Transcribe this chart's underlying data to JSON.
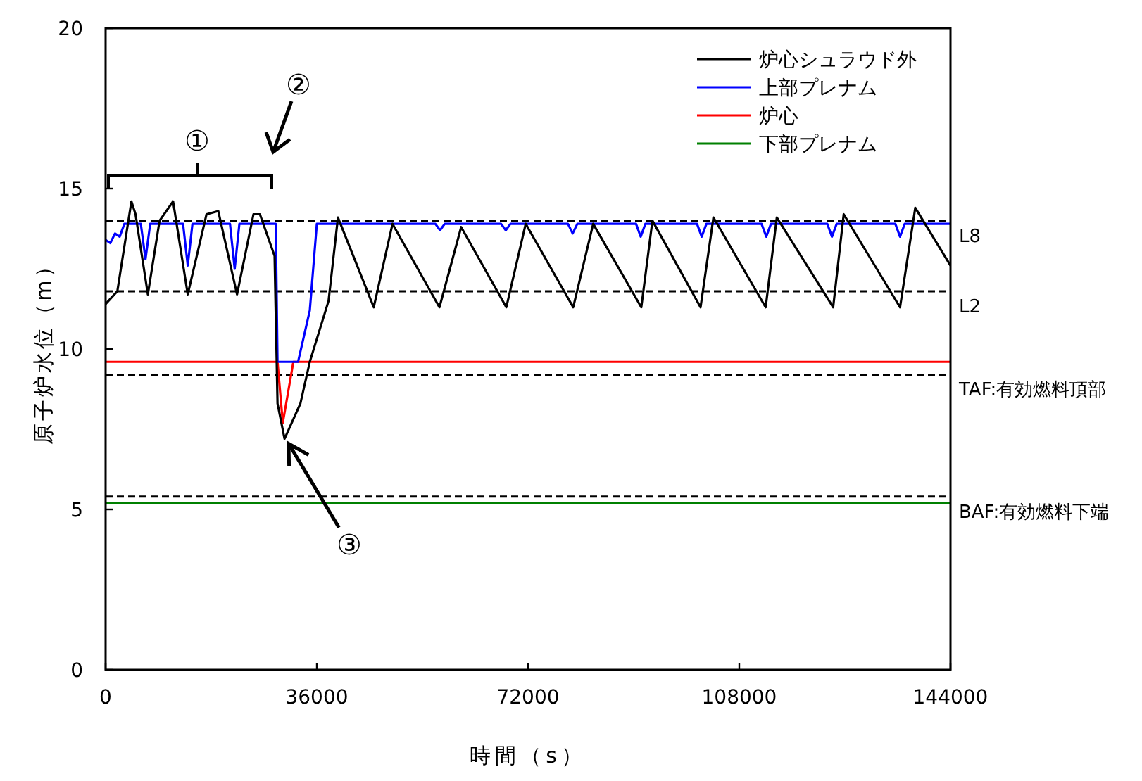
{
  "chart_data": {
    "type": "line",
    "xlabel": "時間（s）",
    "ylabel": "原子炉水位（m）",
    "xlim": [
      0,
      144000
    ],
    "xticks": [
      0,
      36000,
      72000,
      108000,
      144000
    ],
    "ylim": [
      0,
      20
    ],
    "yticks": [
      0,
      5,
      10,
      15,
      20
    ],
    "grid": false,
    "legend": "top right",
    "marker": "none",
    "line_style": "solid",
    "series": [
      {
        "name": "炉心シュラウド外",
        "color": "#000000",
        "x": [
          0,
          2000,
          4400,
          5100,
          7200,
          9200,
          11500,
          14000,
          17200,
          19200,
          22400,
          25200,
          26300,
          28800,
          29300,
          30500,
          33200,
          34800,
          38000,
          39600,
          45700,
          48900,
          56900,
          60600,
          68300,
          71600,
          79700,
          83100,
          91300,
          93200,
          101400,
          103600,
          112500,
          114400,
          124000,
          125800,
          135400,
          138000,
          144000
        ],
        "values": [
          11.4,
          11.8,
          14.6,
          14.2,
          11.7,
          14.0,
          14.6,
          11.7,
          14.2,
          14.3,
          11.7,
          14.2,
          14.2,
          12.9,
          8.3,
          7.2,
          8.3,
          9.6,
          11.5,
          14.1,
          11.3,
          13.9,
          11.3,
          13.8,
          11.3,
          13.9,
          11.3,
          13.9,
          11.3,
          14.0,
          11.3,
          14.1,
          11.3,
          14.1,
          11.3,
          14.2,
          11.3,
          14.4,
          12.6
        ]
      },
      {
        "name": "上部プレナム",
        "color": "#0000ff",
        "x": [
          0,
          800,
          1600,
          2400,
          3200,
          6000,
          6800,
          7600,
          13200,
          14000,
          14800,
          21200,
          22000,
          22800,
          29000,
          29300,
          32800,
          34800,
          36000,
          56200,
          57000,
          57800,
          67400,
          68200,
          69000,
          78800,
          79600,
          80400,
          90400,
          91200,
          92000,
          100800,
          101600,
          102400,
          111800,
          112600,
          113400,
          123000,
          123800,
          124600,
          134600,
          135400,
          136200,
          144000
        ],
        "values": [
          13.4,
          13.3,
          13.6,
          13.5,
          13.9,
          13.9,
          12.8,
          13.9,
          13.9,
          12.6,
          13.9,
          13.9,
          12.5,
          13.9,
          13.9,
          9.6,
          9.6,
          11.2,
          13.9,
          13.9,
          13.7,
          13.9,
          13.9,
          13.7,
          13.9,
          13.9,
          13.6,
          13.9,
          13.9,
          13.5,
          13.9,
          13.9,
          13.5,
          13.9,
          13.9,
          13.5,
          13.9,
          13.9,
          13.5,
          13.9,
          13.9,
          13.5,
          13.9,
          13.9
        ]
      },
      {
        "name": "炉心",
        "color": "#ff0000",
        "x": [
          0,
          29300,
          30200,
          32000,
          144000
        ],
        "values": [
          9.6,
          9.6,
          7.7,
          9.6,
          9.6
        ]
      },
      {
        "name": "下部プレナム",
        "color": "#008000",
        "x": [
          0,
          144000
        ],
        "values": [
          5.2,
          5.2
        ]
      }
    ],
    "ref_lines": [
      {
        "axis": "y",
        "value": 14.0,
        "label": "L8",
        "color": "#000000",
        "line_style": "dashed"
      },
      {
        "axis": "y",
        "value": 11.8,
        "label": "L2",
        "color": "#000000",
        "line_style": "dashed"
      },
      {
        "axis": "y",
        "value": 9.2,
        "label": "TAF:有効燃料頂部",
        "color": "#000000",
        "line_style": "dashed"
      },
      {
        "axis": "y",
        "value": 5.4,
        "label": "BAF:有効燃料下端",
        "color": "#000000",
        "line_style": "dashed"
      }
    ],
    "annotations": [
      "①",
      "②",
      {
        "text": "③",
        "x": 30700,
        "y": 7.2
      }
    ]
  }
}
